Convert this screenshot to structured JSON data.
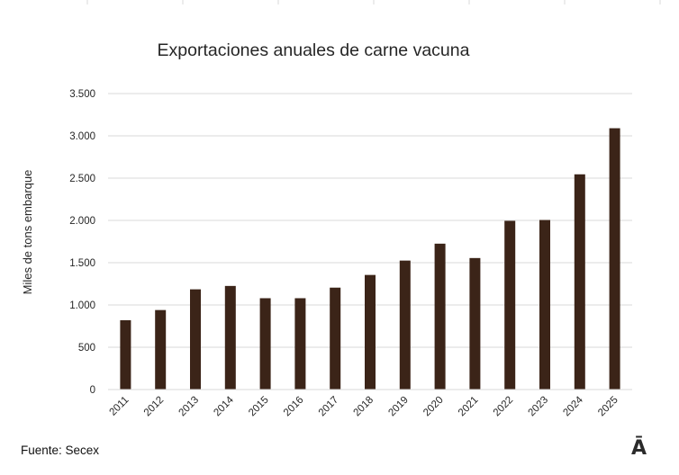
{
  "chart_data": {
    "type": "bar",
    "title": "Exportaciones anuales de carne vacuna",
    "ylabel": "Miles de tons embarque",
    "xlabel": "",
    "categories": [
      "2011",
      "2012",
      "2013",
      "2014",
      "2015",
      "2016",
      "2017",
      "2018",
      "2019",
      "2020",
      "2021",
      "2022",
      "2023",
      "2024",
      "2025"
    ],
    "values": [
      820,
      940,
      1185,
      1225,
      1080,
      1080,
      1205,
      1355,
      1525,
      1725,
      1555,
      1995,
      2005,
      2545,
      3090
    ],
    "ylim": [
      0,
      3500
    ],
    "yticks": [
      0,
      500,
      1000,
      1500,
      2000,
      2500,
      3000,
      3500
    ],
    "ytick_labels": [
      "0",
      "500",
      "1.000",
      "1.500",
      "2.000",
      "2.500",
      "3.000",
      "3.500"
    ],
    "grid": true,
    "bar_color": "#3b2418",
    "grid_color": "#d9d9d9"
  },
  "footer": {
    "source": "Fuente: Secex",
    "logo_text": "Ā"
  }
}
